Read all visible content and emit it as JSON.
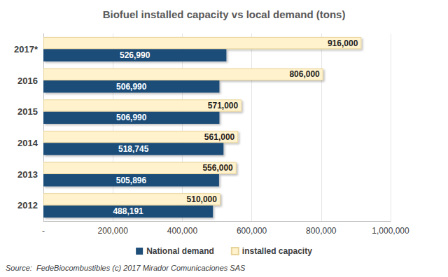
{
  "chart_data": {
    "type": "bar",
    "orientation": "horizontal",
    "title": "Biofuel installed capacity vs local demand (tons)",
    "annotation": "Source:  FedeBiocombustibles (c) 2017 Mirador Comunicaciones SAS",
    "categories": [
      "2012",
      "2013",
      "2014",
      "2015",
      "2016",
      "2017*"
    ],
    "series": [
      {
        "name": "National demand",
        "color": "#1f4e79",
        "values": [
          488191,
          505896,
          518745,
          506990,
          506990,
          526990
        ],
        "value_labels": [
          "488,191",
          "505,896",
          "518,745",
          "506,990",
          "506,990",
          "526,990"
        ]
      },
      {
        "name": "installed capacity",
        "color": "#fff2cc",
        "values": [
          510000,
          556000,
          561000,
          571000,
          806000,
          916000
        ],
        "value_labels": [
          "510,000",
          "556,000",
          "561,000",
          "571,000",
          "806,000",
          "916,000"
        ]
      }
    ],
    "xlim": [
      0,
      1000000
    ],
    "xticks": [
      {
        "value": 0,
        "label": "-"
      },
      {
        "value": 200000,
        "label": "200,000"
      },
      {
        "value": 400000,
        "label": "400,000"
      },
      {
        "value": 600000,
        "label": "600,000"
      },
      {
        "value": 800000,
        "label": "800,000"
      },
      {
        "value": 1000000,
        "label": "1,000,000"
      }
    ],
    "grid": true,
    "legend": "bottom",
    "data_labels": true
  }
}
